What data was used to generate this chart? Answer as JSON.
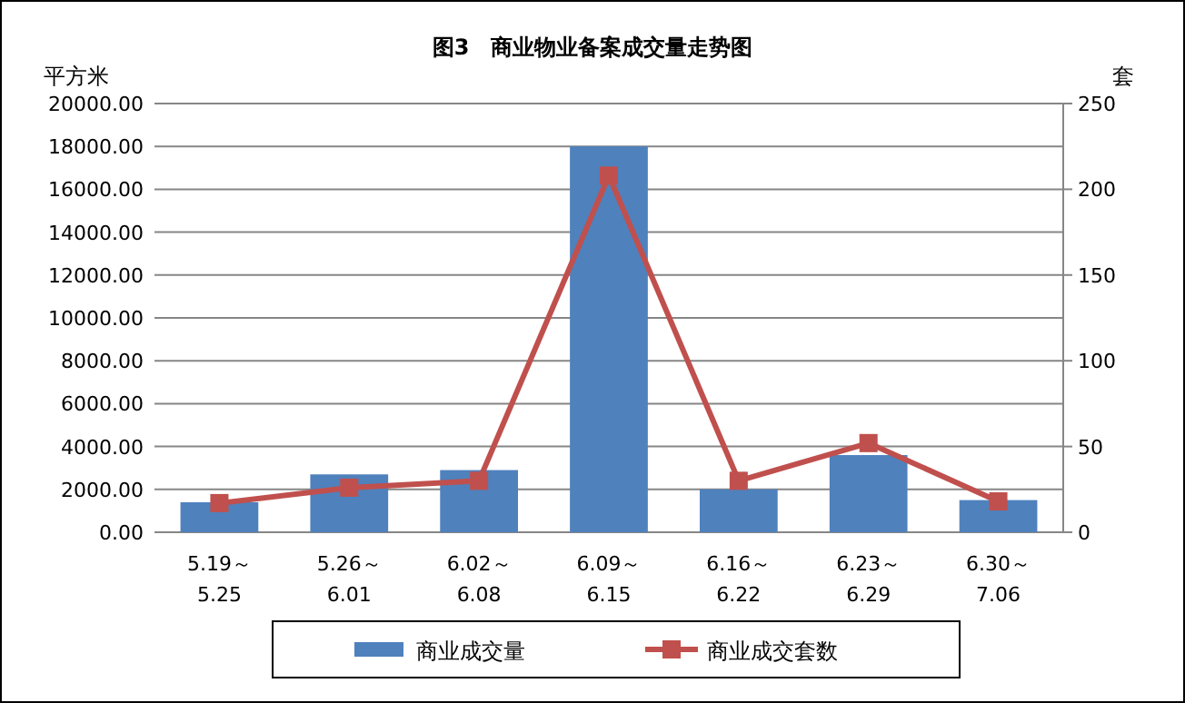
{
  "chart_data": {
    "type": "bar",
    "title": "图3　商业物业备案成交量走势图",
    "ylabel": "平方米",
    "y2label": "套",
    "categories": [
      "5.19～5.25",
      "5.26～6.01",
      "6.02～6.08",
      "6.09～6.15",
      "6.16～6.22",
      "6.23～6.29",
      "6.30～7.06"
    ],
    "series": [
      {
        "name": "商业成交量",
        "color": "#4f81bd",
        "values": [
          1400,
          2700,
          2900,
          18000,
          2000,
          3600,
          1500
        ]
      },
      {
        "name": "商业成交套数",
        "type": "line",
        "axis": "y2",
        "color": "#c0504d",
        "values": [
          17,
          26,
          30,
          208,
          30,
          52,
          18
        ]
      }
    ],
    "ylim": [
      0,
      20000
    ],
    "yticks": [
      {
        "value": 0,
        "label": "0.00"
      },
      {
        "value": 2000,
        "label": "2000.00"
      },
      {
        "value": 4000,
        "label": "4000.00"
      },
      {
        "value": 6000,
        "label": "6000.00"
      },
      {
        "value": 8000,
        "label": "8000.00"
      },
      {
        "value": 10000,
        "label": "10000.00"
      },
      {
        "value": 12000,
        "label": "12000.00"
      },
      {
        "value": 14000,
        "label": "14000.00"
      },
      {
        "value": 16000,
        "label": "16000.00"
      },
      {
        "value": 18000,
        "label": "18000.00"
      },
      {
        "value": 20000,
        "label": "20000.00"
      }
    ],
    "y2lim": [
      0,
      250
    ],
    "y2ticks": [
      0,
      50,
      100,
      150,
      200,
      250
    ],
    "grid": "y",
    "legend": "bottom",
    "marker": "square"
  }
}
